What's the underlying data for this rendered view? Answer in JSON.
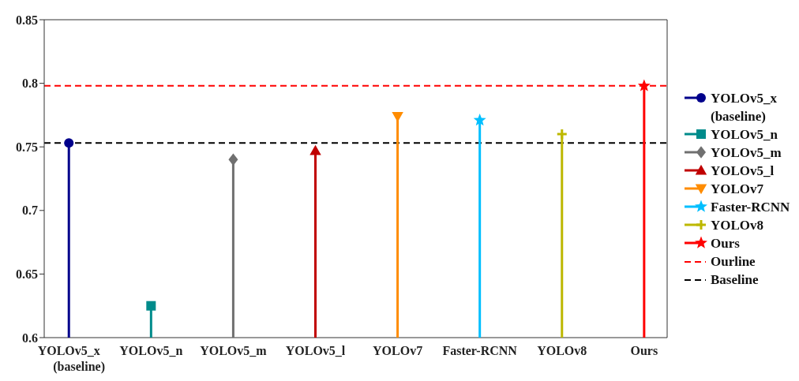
{
  "chart_data": {
    "type": "lollipop",
    "categories": [
      "YOLOv5_x (baseline)",
      "YOLOv5_n",
      "YOLOv5_m",
      "YOLOv5_l",
      "YOLOv7",
      "Faster-RCNN",
      "YOLOv8",
      "Ours"
    ],
    "series": [
      {
        "name": "YOLOv5_x (baseline)",
        "color": "#00008b",
        "marker": "circle",
        "values": [
          0.753,
          null,
          null,
          null,
          null,
          null,
          null,
          null
        ]
      },
      {
        "name": "YOLOv5_n",
        "color": "#008b8b",
        "marker": "square",
        "values": [
          null,
          0.625,
          null,
          null,
          null,
          null,
          null,
          null
        ]
      },
      {
        "name": "YOLOv5_m",
        "color": "#707070",
        "marker": "diamond",
        "values": [
          null,
          null,
          0.74,
          null,
          null,
          null,
          null,
          null
        ]
      },
      {
        "name": "YOLOv5_l",
        "color": "#c00000",
        "marker": "triangle",
        "values": [
          null,
          null,
          null,
          0.747,
          null,
          null,
          null,
          null
        ]
      },
      {
        "name": "YOLOv7",
        "color": "#ff8c00",
        "marker": "triangle-down",
        "values": [
          null,
          null,
          null,
          null,
          0.774,
          null,
          null,
          null
        ]
      },
      {
        "name": "Faster-RCNN",
        "color": "#00bfff",
        "marker": "star",
        "values": [
          null,
          null,
          null,
          null,
          null,
          0.771,
          null,
          null
        ]
      },
      {
        "name": "YOLOv8",
        "color": "#bdb800",
        "marker": "cross",
        "values": [
          null,
          null,
          null,
          null,
          null,
          null,
          0.76,
          null
        ]
      },
      {
        "name": "Ours",
        "color": "#ff0000",
        "marker": "star",
        "values": [
          null,
          null,
          null,
          null,
          null,
          null,
          null,
          0.798
        ]
      }
    ],
    "ref_lines": [
      {
        "axis": "y",
        "value": 0.798,
        "label": "Ourline",
        "color": "#ff0000",
        "line_style": "dashed"
      },
      {
        "axis": "y",
        "value": 0.753,
        "label": "Baseline",
        "color": "#000000",
        "line_style": "dashed"
      }
    ],
    "ylim": [
      0.6,
      0.85
    ],
    "yticks": [
      0.6,
      0.65,
      0.7,
      0.75,
      0.8,
      0.85
    ],
    "legend": "right"
  }
}
